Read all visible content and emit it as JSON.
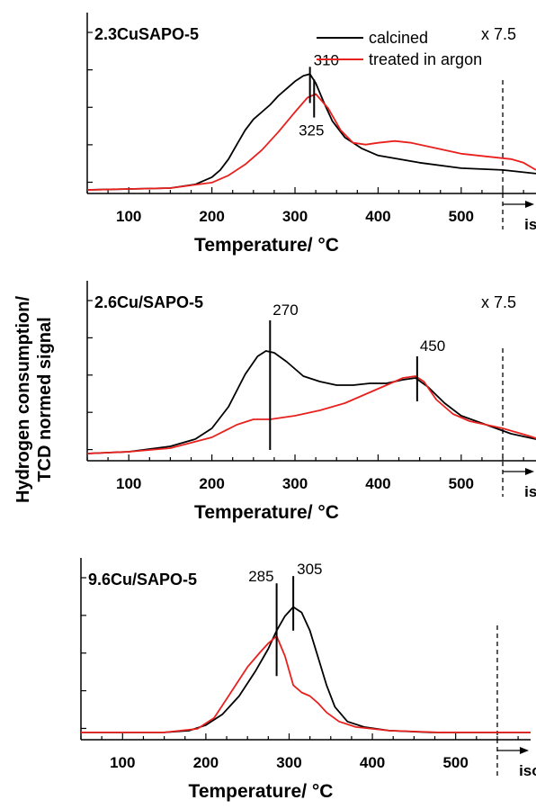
{
  "figure": {
    "ylabel_line1": "Hydrogen consumption/",
    "ylabel_line2": "TCD normed signal"
  },
  "chart_data": [
    {
      "type": "line",
      "title": "2.3CuSAPO-5",
      "xlabel": "Temperature/ °C",
      "ylabel": "",
      "xlim": [
        50,
        590
      ],
      "ylim": [
        0,
        1
      ],
      "xticks": [
        100,
        200,
        300,
        400,
        500
      ],
      "scale_note": "x 7.5",
      "isotherm_label": "isotherm",
      "isotherm_x": 550,
      "legend": {
        "position": "top-right",
        "entries": [
          "calcined",
          "treated in argon"
        ]
      },
      "peak_labels": [
        {
          "label": "310",
          "x": 318,
          "y": 0.72,
          "line_to": 0.5
        },
        {
          "label": "325",
          "x": 323,
          "y": 0.65,
          "line_to": 0.42
        }
      ],
      "series": [
        {
          "name": "calcined",
          "color": "#000000",
          "x": [
            50,
            150,
            180,
            200,
            210,
            220,
            230,
            240,
            250,
            260,
            270,
            280,
            290,
            300,
            310,
            318,
            325,
            335,
            345,
            360,
            380,
            400,
            450,
            500,
            550,
            590
          ],
          "y": [
            0.02,
            0.03,
            0.05,
            0.09,
            0.13,
            0.19,
            0.27,
            0.35,
            0.41,
            0.45,
            0.49,
            0.54,
            0.58,
            0.62,
            0.65,
            0.66,
            0.61,
            0.5,
            0.4,
            0.31,
            0.25,
            0.21,
            0.17,
            0.14,
            0.13,
            0.11
          ]
        },
        {
          "name": "treated in argon",
          "color": "#e8211e",
          "x": [
            50,
            150,
            200,
            220,
            240,
            260,
            280,
            300,
            315,
            325,
            340,
            355,
            370,
            385,
            400,
            420,
            440,
            460,
            480,
            500,
            520,
            540,
            560,
            575,
            590
          ],
          "y": [
            0.02,
            0.03,
            0.06,
            0.1,
            0.16,
            0.24,
            0.34,
            0.45,
            0.53,
            0.55,
            0.47,
            0.35,
            0.28,
            0.27,
            0.28,
            0.29,
            0.28,
            0.26,
            0.24,
            0.22,
            0.21,
            0.2,
            0.19,
            0.17,
            0.13
          ]
        }
      ]
    },
    {
      "type": "line",
      "title": "2.6Cu/SAPO-5",
      "xlabel": "Temperature/ °C",
      "ylabel": "",
      "xlim": [
        50,
        590
      ],
      "ylim": [
        0,
        1
      ],
      "xticks": [
        100,
        200,
        300,
        400,
        500
      ],
      "scale_note": "x 7.5",
      "isotherm_label": "isotherm",
      "isotherm_x": 550,
      "peak_labels": [
        {
          "label": "270",
          "x": 270,
          "y": 0.8,
          "line_to": 0.06
        },
        {
          "label": "450",
          "x": 447,
          "y": 0.6,
          "line_to": 0.33
        }
      ],
      "series": [
        {
          "name": "calcined",
          "color": "#000000",
          "x": [
            50,
            100,
            150,
            180,
            200,
            220,
            240,
            255,
            265,
            275,
            290,
            310,
            330,
            350,
            370,
            390,
            410,
            430,
            445,
            460,
            480,
            500,
            530,
            560,
            590,
            620
          ],
          "y": [
            0.04,
            0.05,
            0.08,
            0.12,
            0.18,
            0.3,
            0.48,
            0.58,
            0.61,
            0.6,
            0.55,
            0.47,
            0.44,
            0.42,
            0.42,
            0.43,
            0.43,
            0.45,
            0.46,
            0.41,
            0.32,
            0.25,
            0.2,
            0.15,
            0.12,
            0.1
          ]
        },
        {
          "name": "treated in argon",
          "color": "#e8211e",
          "x": [
            50,
            100,
            150,
            200,
            230,
            250,
            270,
            300,
            330,
            360,
            390,
            410,
            430,
            445,
            455,
            470,
            490,
            510,
            530,
            550,
            580,
            600,
            610,
            620
          ],
          "y": [
            0.04,
            0.05,
            0.07,
            0.13,
            0.2,
            0.23,
            0.23,
            0.25,
            0.28,
            0.32,
            0.38,
            0.42,
            0.46,
            0.47,
            0.44,
            0.34,
            0.26,
            0.22,
            0.2,
            0.18,
            0.14,
            0.11,
            0.05,
            0.05
          ]
        }
      ]
    },
    {
      "type": "line",
      "title": "9.6Cu/SAPO-5",
      "xlabel": "Temperature/ °C",
      "ylabel": "",
      "xlim": [
        50,
        590
      ],
      "ylim": [
        0,
        1
      ],
      "xticks": [
        100,
        200,
        300,
        400,
        500
      ],
      "scale_note": "",
      "isotherm_label": "isotherm",
      "isotherm_x": 550,
      "peak_labels": [
        {
          "label": "285",
          "x": 285,
          "y": 0.88,
          "line_to": 0.35
        },
        {
          "label": "305",
          "x": 305,
          "y": 0.92,
          "line_to": 0.6
        }
      ],
      "series": [
        {
          "name": "calcined",
          "color": "#000000",
          "x": [
            50,
            150,
            180,
            200,
            220,
            240,
            260,
            275,
            285,
            295,
            305,
            315,
            325,
            335,
            345,
            355,
            370,
            390,
            420,
            470,
            550,
            590
          ],
          "y": [
            0.04,
            0.04,
            0.05,
            0.08,
            0.14,
            0.24,
            0.38,
            0.5,
            0.6,
            0.68,
            0.73,
            0.7,
            0.6,
            0.45,
            0.3,
            0.18,
            0.1,
            0.07,
            0.05,
            0.04,
            0.04,
            0.04
          ]
        },
        {
          "name": "treated in argon",
          "color": "#e8211e",
          "x": [
            50,
            150,
            190,
            210,
            230,
            250,
            265,
            275,
            285,
            295,
            305,
            315,
            325,
            335,
            345,
            360,
            380,
            420,
            480,
            550,
            590
          ],
          "y": [
            0.04,
            0.04,
            0.06,
            0.12,
            0.26,
            0.4,
            0.48,
            0.53,
            0.57,
            0.46,
            0.3,
            0.26,
            0.24,
            0.2,
            0.15,
            0.1,
            0.07,
            0.05,
            0.04,
            0.04,
            0.04
          ]
        }
      ]
    }
  ]
}
